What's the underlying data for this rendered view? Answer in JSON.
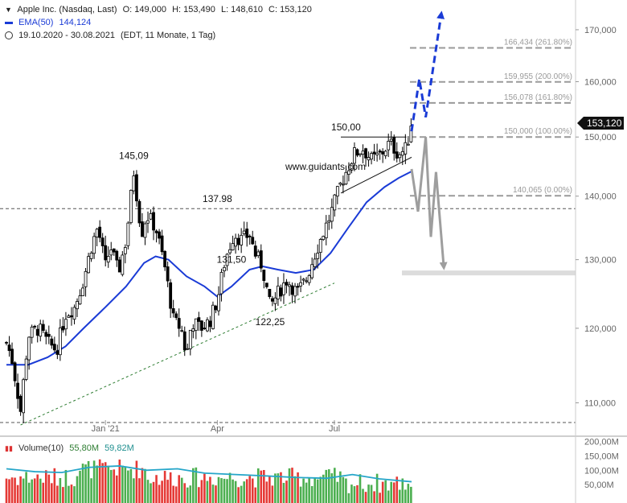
{
  "header": {
    "symbol_line": {
      "name": "Apple Inc. (Nasdaq, Last)",
      "open": "O: 149,000",
      "high": "H: 153,490",
      "low": "L: 148,610",
      "close": "C: 153,120"
    },
    "ema_line": {
      "label": "EMA(50)",
      "value": "144,124",
      "color": "#1a3bd6"
    },
    "range_line": {
      "dates": "19.10.2020 - 30.08.2021",
      "info": "(EDT, 11 Monate, 1 Tag)"
    }
  },
  "watermark": "www.guidants.com",
  "last_price_label": "153,120",
  "volume_header": {
    "label": "Volume(10)",
    "value1": "55,80M",
    "value2": "59,82M"
  },
  "chart_data": {
    "type": "candlestick",
    "title": "",
    "price_axis": {
      "ticks": [
        {
          "value": 110,
          "label": "110,000"
        },
        {
          "value": 120,
          "label": "120,000"
        },
        {
          "value": 130,
          "label": "130,000"
        },
        {
          "value": 140,
          "label": "140,000"
        },
        {
          "value": 150,
          "label": "150,000"
        },
        {
          "value": 160,
          "label": "160,000"
        },
        {
          "value": 170,
          "label": "170,000"
        }
      ],
      "range": [
        106,
        176
      ],
      "scale": "log"
    },
    "time_axis": {
      "range": [
        "2020-10-19",
        "2021-08-30"
      ],
      "ticks": [
        {
          "date": "2021-01-04",
          "label": "Jan '21"
        },
        {
          "date": "2021-04-01",
          "label": "Apr"
        },
        {
          "date": "2021-07-01",
          "label": "Jul"
        }
      ]
    },
    "price_path": [
      [
        "2020-10-19",
        118
      ],
      [
        "2020-10-23",
        116
      ],
      [
        "2020-10-30",
        109
      ],
      [
        "2020-11-05",
        119
      ],
      [
        "2020-11-13",
        120
      ],
      [
        "2020-11-20",
        118
      ],
      [
        "2020-11-27",
        117
      ],
      [
        "2020-12-04",
        122
      ],
      [
        "2020-12-11",
        123
      ],
      [
        "2020-12-18",
        127
      ],
      [
        "2020-12-24",
        132
      ],
      [
        "2020-12-29",
        135
      ],
      [
        "2021-01-04",
        129
      ],
      [
        "2021-01-08",
        132
      ],
      [
        "2021-01-14",
        128
      ],
      [
        "2021-01-20",
        133
      ],
      [
        "2021-01-26",
        144
      ],
      [
        "2021-02-01",
        134
      ],
      [
        "2021-02-05",
        137
      ],
      [
        "2021-02-12",
        135
      ],
      [
        "2021-02-19",
        129
      ],
      [
        "2021-02-26",
        121
      ],
      [
        "2021-03-04",
        120
      ],
      [
        "2021-03-08",
        116
      ],
      [
        "2021-03-12",
        121
      ],
      [
        "2021-03-19",
        120
      ],
      [
        "2021-03-26",
        121
      ],
      [
        "2021-04-01",
        124
      ],
      [
        "2021-04-07",
        130
      ],
      [
        "2021-04-14",
        134
      ],
      [
        "2021-04-20",
        133
      ],
      [
        "2021-04-26",
        134
      ],
      [
        "2021-04-30",
        131
      ],
      [
        "2021-05-06",
        129
      ],
      [
        "2021-05-12",
        123
      ],
      [
        "2021-05-18",
        125
      ],
      [
        "2021-05-25",
        127
      ],
      [
        "2021-06-02",
        125
      ],
      [
        "2021-06-09",
        127
      ],
      [
        "2021-06-16",
        131
      ],
      [
        "2021-06-22",
        134
      ],
      [
        "2021-06-28",
        137
      ],
      [
        "2021-07-06",
        142
      ],
      [
        "2021-07-12",
        145
      ],
      [
        "2021-07-16",
        147
      ],
      [
        "2021-07-23",
        148
      ],
      [
        "2021-07-30",
        146
      ],
      [
        "2021-08-06",
        147
      ],
      [
        "2021-08-13",
        149
      ],
      [
        "2021-08-20",
        147
      ],
      [
        "2021-08-26",
        148
      ],
      [
        "2021-08-30",
        153
      ]
    ],
    "ema50": [
      [
        "2020-10-19",
        115
      ],
      [
        "2020-11-05",
        115
      ],
      [
        "2020-11-20",
        116
      ],
      [
        "2020-12-04",
        117.5
      ],
      [
        "2020-12-18",
        120
      ],
      [
        "2021-01-04",
        123
      ],
      [
        "2021-01-20",
        126
      ],
      [
        "2021-02-03",
        129.5
      ],
      [
        "2021-02-12",
        130.5
      ],
      [
        "2021-02-22",
        130
      ],
      [
        "2021-03-08",
        127.5
      ],
      [
        "2021-03-22",
        126
      ],
      [
        "2021-04-01",
        124.5
      ],
      [
        "2021-04-12",
        126
      ],
      [
        "2021-04-26",
        128.5
      ],
      [
        "2021-05-06",
        129
      ],
      [
        "2021-05-18",
        128.5
      ],
      [
        "2021-06-01",
        128
      ],
      [
        "2021-06-15",
        128.5
      ],
      [
        "2021-06-28",
        131
      ],
      [
        "2021-07-12",
        135
      ],
      [
        "2021-07-26",
        139
      ],
      [
        "2021-08-09",
        141.5
      ],
      [
        "2021-08-20",
        143
      ],
      [
        "2021-08-30",
        144.1
      ]
    ],
    "annotations": [
      {
        "label": "145,09",
        "date": "2021-01-26",
        "value": 145.09,
        "position": "above"
      },
      {
        "label": "137.98",
        "date": "2021-04-01",
        "value": 137.98,
        "position": "above"
      },
      {
        "label": "131,50",
        "date": "2021-04-12",
        "value": 131.5,
        "position": "below"
      },
      {
        "label": "122,25",
        "date": "2021-05-12",
        "value": 122.25,
        "position": "below"
      },
      {
        "label": "150,00",
        "date": "2021-07-10",
        "value": 150.0,
        "position": "above"
      }
    ],
    "horizontal_levels": [
      {
        "value": 137.98,
        "style": "dashed-dark"
      },
      {
        "value": 107.5,
        "style": "dashed-dark"
      },
      {
        "value": 128.0,
        "style": "zone-gray"
      }
    ],
    "fibonacci": [
      {
        "value": 166.434,
        "label": "166,434 (261.80%)"
      },
      {
        "value": 159.955,
        "label": "159,955 (200.00%)"
      },
      {
        "value": 156.078,
        "label": "156,078 (161.80%)"
      },
      {
        "value": 150.0,
        "label": "150,000 (100.00%)"
      },
      {
        "value": 140.065,
        "label": "140,065 (0.00%)"
      }
    ],
    "trendlines": [
      {
        "style": "dotted-green",
        "from": [
          "2020-10-30",
          107.2
        ],
        "to": [
          "2021-07-01",
          126.5
        ]
      },
      {
        "style": "solid-black",
        "from": [
          "2021-07-06",
          140.5
        ],
        "to": [
          "2021-08-30",
          146.5
        ]
      },
      {
        "style": "solid-black",
        "from": [
          "2021-07-06",
          150.0
        ],
        "to": [
          "2021-08-26",
          150.0
        ]
      }
    ],
    "scenario_bullish": [
      [
        "2021-08-30",
        151
      ],
      [
        "2021-09-05",
        160.5
      ],
      [
        "2021-09-10",
        153.5
      ],
      [
        "2021-09-22",
        173
      ]
    ],
    "scenario_bearish": [
      [
        "2021-08-30",
        144.5
      ],
      [
        "2021-09-04",
        137.5
      ],
      [
        "2021-09-10",
        150
      ],
      [
        "2021-09-14",
        133.5
      ],
      [
        "2021-09-18",
        144.0
      ],
      [
        "2021-09-24",
        129
      ]
    ],
    "volume": {
      "axis_ticks": [
        {
          "value": 50,
          "label": "50,00M"
        },
        {
          "value": 100,
          "label": "100,00M"
        },
        {
          "value": 150,
          "label": "150,00M"
        },
        {
          "value": 200,
          "label": "200,00M"
        }
      ],
      "range": [
        0,
        210
      ],
      "avg_path": [
        [
          "2020-10-19",
          105
        ],
        [
          "2020-11-10",
          95
        ],
        [
          "2020-12-01",
          92
        ],
        [
          "2020-12-22",
          110
        ],
        [
          "2021-01-15",
          115
        ],
        [
          "2021-02-05",
          100
        ],
        [
          "2021-03-01",
          105
        ],
        [
          "2021-03-22",
          90
        ],
        [
          "2021-04-15",
          85
        ],
        [
          "2021-05-10",
          80
        ],
        [
          "2021-06-01",
          75
        ],
        [
          "2021-06-25",
          72
        ],
        [
          "2021-07-15",
          85
        ],
        [
          "2021-08-05",
          70
        ],
        [
          "2021-08-30",
          60
        ]
      ]
    },
    "colors": {
      "ema": "#1a3bd6",
      "bullish": "#1a3bd6",
      "bearish": "#9e9e9e",
      "volume_up": "#4caf50",
      "volume_down": "#e53935",
      "volume_avg": "#26a6c9"
    }
  }
}
